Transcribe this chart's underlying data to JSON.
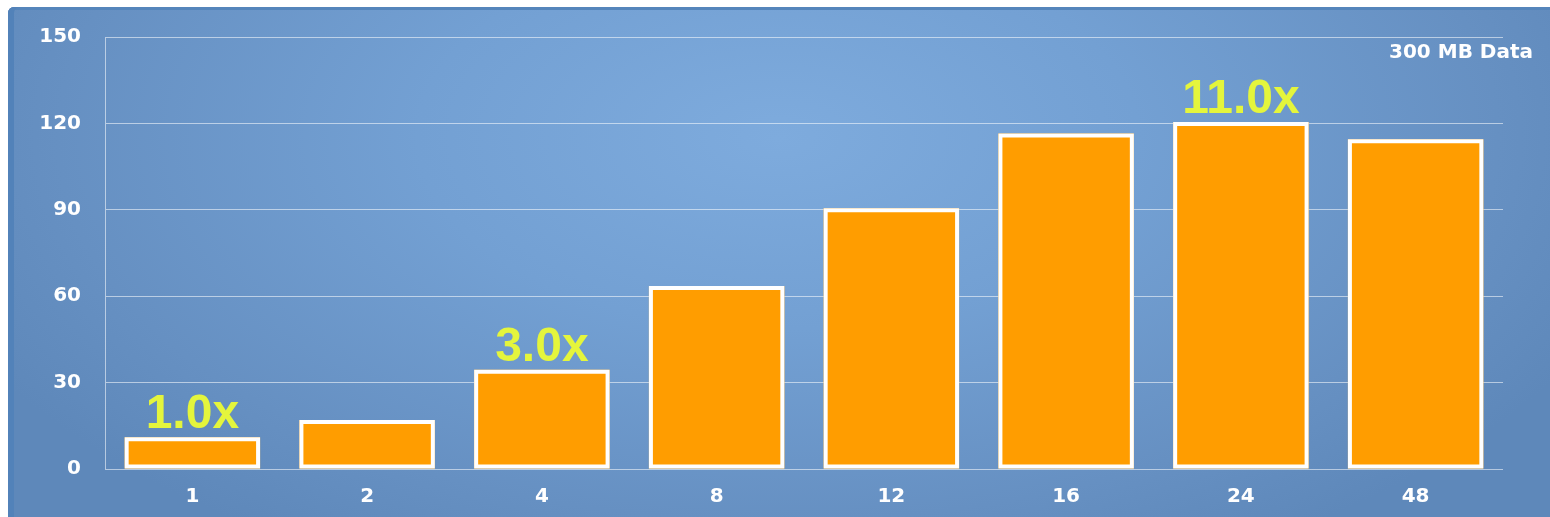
{
  "chart_data": {
    "type": "bar",
    "categories": [
      "1",
      "2",
      "4",
      "8",
      "12",
      "16",
      "24",
      "48"
    ],
    "values": [
      11,
      17,
      34.5,
      63.5,
      90.5,
      116.5,
      120.5,
      114.5
    ],
    "color": "#ff9d00",
    "ylim": [
      0,
      150
    ],
    "yticks": [
      0,
      30,
      60,
      90,
      120,
      150
    ],
    "grid": "y",
    "annotations": [
      "300 MB Data",
      {
        "text": "1.0x",
        "x": "1",
        "y": 11
      },
      {
        "text": "3.0x",
        "x": "4",
        "y": 34.5
      },
      {
        "text": "11.0x",
        "x": "24",
        "y": 120.5
      }
    ]
  }
}
